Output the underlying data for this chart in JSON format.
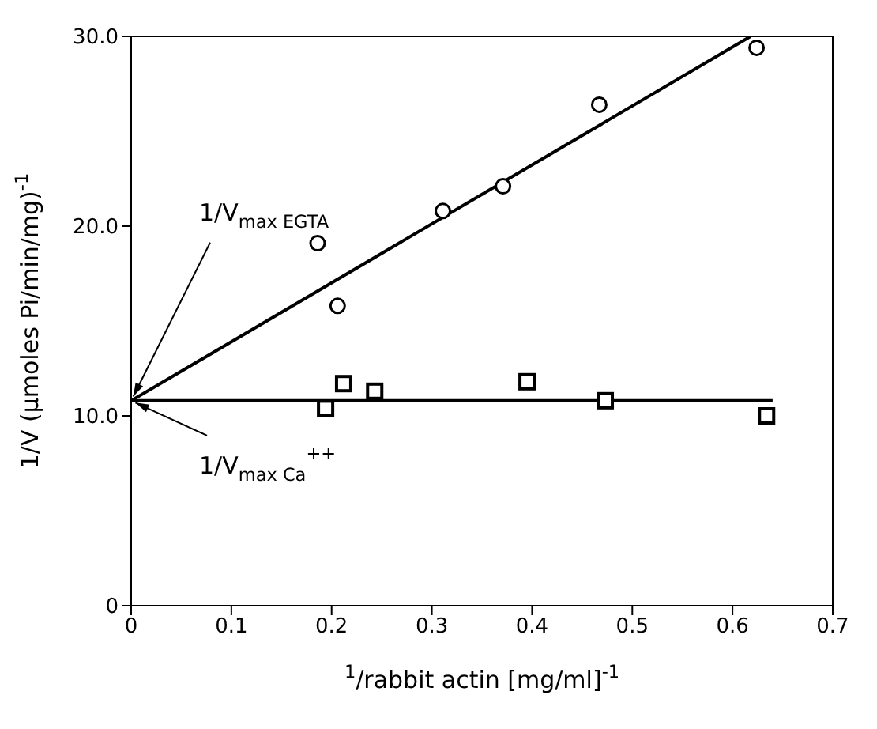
{
  "chart_data": {
    "type": "scatter",
    "xlabel": "$^{1}$/rabbit actin [mg/ml]$^{-1}$",
    "ylabel": "1/V  (µmoles Pi/min/mg)$^{-1}$",
    "xlim": [
      0,
      0.7
    ],
    "ylim": [
      0,
      30
    ],
    "xticks": [
      0,
      0.1,
      0.2,
      0.3,
      0.4,
      0.5,
      0.6,
      0.7
    ],
    "yticks": [
      0,
      {
        "value": 10,
        "label": "10.0"
      },
      {
        "value": 20,
        "label": "20.0"
      },
      {
        "value": 30,
        "label": "30.0"
      }
    ],
    "series": [
      {
        "marker": "circle",
        "color": "#000000",
        "x": [
          0.186,
          0.206,
          0.311,
          0.371,
          0.467,
          0.624
        ],
        "values": [
          19.1,
          15.8,
          20.8,
          22.1,
          26.4,
          29.4
        ]
      },
      {
        "marker": "square",
        "color": "#000000",
        "x": [
          0.194,
          0.212,
          0.243,
          0.395,
          0.473,
          0.634
        ],
        "values": [
          10.4,
          11.7,
          11.3,
          11.8,
          10.8,
          10.0
        ]
      },
      {
        "type": "line",
        "marker": "none",
        "color": "#000000",
        "x": [
          0,
          0.618
        ],
        "values": [
          10.8,
          30
        ]
      },
      {
        "type": "line",
        "marker": "none",
        "color": "#000000",
        "x": [
          0,
          0.64
        ],
        "values": [
          10.8,
          10.8
        ]
      }
    ],
    "annotations": [
      {
        "text": "1/V$_{max EGTA}$",
        "x": 0,
        "y": 10.8
      },
      {
        "text": "1/V$_{max Ca}$$^{++}$",
        "x": 0,
        "y": 10.8
      }
    ],
    "grid": false,
    "legend": false
  }
}
